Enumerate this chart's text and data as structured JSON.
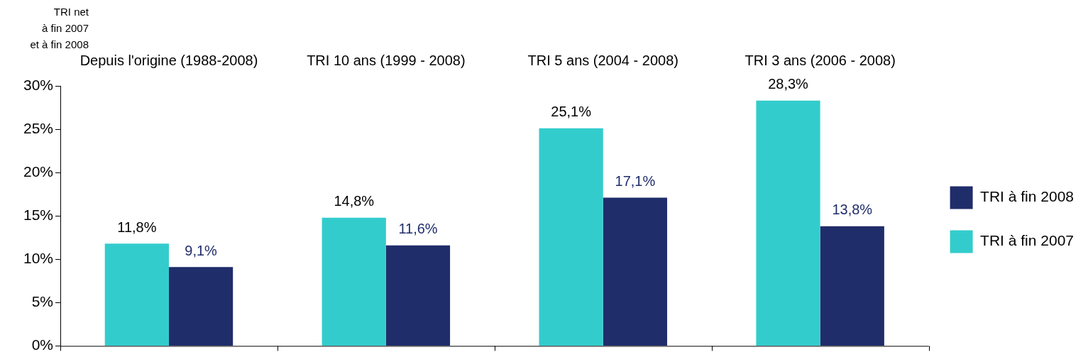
{
  "chart_data": {
    "type": "bar",
    "ylabel": "TRI net\nà fin 2007\net à fin 2008",
    "categories": [
      "Depuis l'origine (1988-2008)",
      "TRI 10 ans (1999 - 2008)",
      "TRI 5 ans (2004 - 2008)",
      "TRI 3 ans (2006 - 2008)"
    ],
    "series": [
      {
        "name": "TRI à fin 2007",
        "color": "#33cccc",
        "values": [
          11.8,
          14.8,
          25.1,
          28.3
        ],
        "value_labels": [
          "11,8%",
          "14,8%",
          "25,1%",
          "28,3%"
        ]
      },
      {
        "name": "TRI à fin 2008",
        "color": "#202d6b",
        "values": [
          9.1,
          11.6,
          17.1,
          13.8
        ],
        "value_labels": [
          "9,1%",
          "11,6%",
          "17,1%",
          "13,8%"
        ]
      }
    ],
    "ylim": [
      0,
      30
    ],
    "yticks": [
      {
        "value": 0,
        "label": "0%"
      },
      {
        "value": 5,
        "label": "5%"
      },
      {
        "value": 10,
        "label": "10%"
      },
      {
        "value": 15,
        "label": "15%"
      },
      {
        "value": 20,
        "label": "20%"
      },
      {
        "value": 25,
        "label": "25%"
      },
      {
        "value": 30,
        "label": "30%"
      }
    ],
    "grid": false,
    "legend": "right"
  }
}
